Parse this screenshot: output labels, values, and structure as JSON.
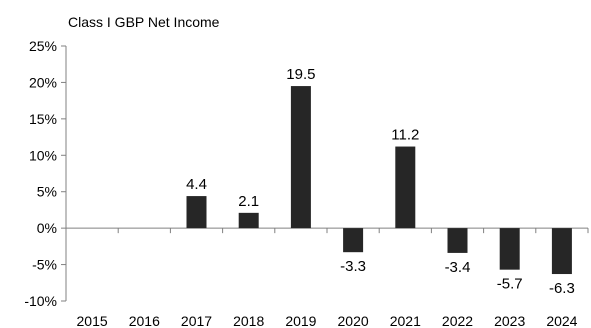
{
  "chart_data": {
    "type": "bar",
    "title": "Class I GBP Net Income",
    "xlabel": "",
    "ylabel": "",
    "categories": [
      "2015",
      "2016",
      "2017",
      "2018",
      "2019",
      "2020",
      "2021",
      "2022",
      "2023",
      "2024"
    ],
    "values": [
      null,
      null,
      4.4,
      2.1,
      19.5,
      -3.3,
      11.2,
      -3.4,
      -5.7,
      -6.3
    ],
    "data_labels": [
      "",
      "",
      "4.4",
      "2.1",
      "19.5",
      "-3.3",
      "11.2",
      "-3.4",
      "-5.7",
      "-6.3"
    ],
    "y_ticks": [
      "25%",
      "20%",
      "15%",
      "10%",
      "5%",
      "0%",
      "-5%",
      "-10%"
    ],
    "y_tick_values": [
      25,
      20,
      15,
      10,
      5,
      0,
      -5,
      -10
    ],
    "ylim": [
      -10,
      25
    ],
    "grid": false,
    "legend": "none",
    "colors": {
      "bar": "#262626",
      "axis": "#808080"
    }
  }
}
